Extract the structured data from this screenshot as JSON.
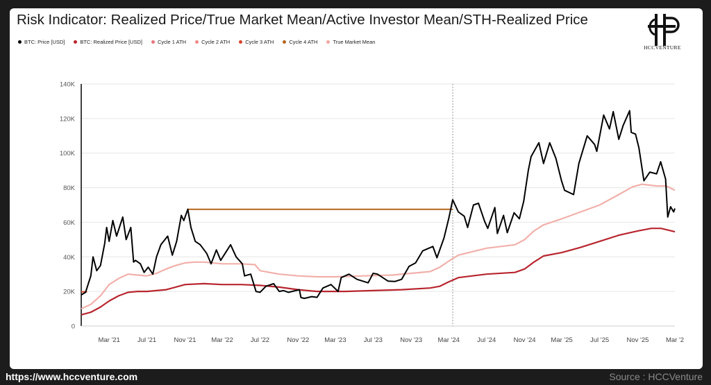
{
  "footer": {
    "url": "https://www.hccventure.com",
    "source": "Source : HCCVenture"
  },
  "logo": {
    "text": "HCCVENTURE"
  },
  "chart_data": {
    "type": "line",
    "title": "Risk Indicator: Realized Price/True Market Mean/Active Investor Mean/STH-Realized Price",
    "ylim": [
      0,
      140000
    ],
    "y_ticks": [
      0,
      20000,
      40000,
      60000,
      80000,
      100000,
      120000,
      140000
    ],
    "y_tick_labels": [
      "0",
      "20K",
      "40K",
      "60K",
      "80K",
      "100K",
      "120K",
      "140K"
    ],
    "x_range": [
      "2020-12-01",
      "2026-03-01"
    ],
    "x_ticks": [
      "2021-03-01",
      "2021-07-01",
      "2021-11-01",
      "2022-03-01",
      "2022-07-01",
      "2022-11-01",
      "2023-03-01",
      "2023-07-01",
      "2023-11-01",
      "2024-03-01",
      "2024-07-01",
      "2024-11-01",
      "2025-03-01",
      "2025-07-01",
      "2025-11-01",
      "2026-03-01"
    ],
    "x_tick_labels": [
      "Mar '21",
      "Jul '21",
      "Nov '21",
      "Mar '22",
      "Jul '22",
      "Nov '22",
      "Mar '23",
      "Jul '23",
      "Nov '23",
      "Mar '24",
      "Jul '24",
      "Nov '24",
      "Mar '25",
      "Jul '25",
      "Nov '25",
      "Mar '2"
    ],
    "grid": true,
    "legend": "top-left",
    "vline_date": "2024-03-14",
    "colors": {
      "btc": "#000000",
      "realized": "#b8252e",
      "cycle1": "#e8757c",
      "cycle2": "#f08a8a",
      "cycle3": "#d6442a",
      "cycle4": "#b5651d",
      "tmm": "#f4a6a0",
      "tmm_line": "#f2b0aa"
    },
    "legend_entries": [
      {
        "name": "BTC: Price [USD]",
        "key": "btc"
      },
      {
        "name": "BTC: Realized Price [USD]",
        "key": "realized"
      },
      {
        "name": "Cycle 1 ATH",
        "key": "cycle1"
      },
      {
        "name": "Cycle 2 ATH",
        "key": "cycle2"
      },
      {
        "name": "Cycle 3 ATH",
        "key": "cycle3"
      },
      {
        "name": "Cycle 4 ATH",
        "key": "cycle4"
      },
      {
        "name": "True Market Mean",
        "key": "tmm"
      }
    ],
    "levels": [
      {
        "name": "Cycle 3 ATH",
        "value": 19800,
        "from": "2020-12-01",
        "to": "2020-12-20",
        "color_key": "cycle3"
      },
      {
        "name": "Cycle 4 ATH",
        "value": 67500,
        "from": "2021-11-10",
        "to": "2024-03-14",
        "color_key": "cycle4"
      }
    ],
    "series": [
      {
        "name": "BTC: Price [USD]",
        "color_key": "btc",
        "x": [
          "2020-12-01",
          "2020-12-15",
          "2021-01-01",
          "2021-01-08",
          "2021-01-20",
          "2021-02-01",
          "2021-02-15",
          "2021-02-21",
          "2021-03-01",
          "2021-03-13",
          "2021-03-25",
          "2021-04-14",
          "2021-04-25",
          "2021-05-10",
          "2021-05-19",
          "2021-05-25",
          "2021-06-10",
          "2021-06-22",
          "2021-07-05",
          "2021-07-20",
          "2021-08-01",
          "2021-08-15",
          "2021-09-06",
          "2021-09-21",
          "2021-10-05",
          "2021-10-20",
          "2021-10-28",
          "2021-11-10",
          "2021-11-20",
          "2021-12-04",
          "2021-12-20",
          "2022-01-10",
          "2022-01-24",
          "2022-02-10",
          "2022-02-24",
          "2022-03-28",
          "2022-04-15",
          "2022-05-05",
          "2022-05-12",
          "2022-06-01",
          "2022-06-18",
          "2022-07-01",
          "2022-07-20",
          "2022-08-14",
          "2022-09-01",
          "2022-09-15",
          "2022-10-01",
          "2022-11-05",
          "2022-11-10",
          "2022-11-21",
          "2022-12-15",
          "2023-01-01",
          "2023-01-20",
          "2023-02-15",
          "2023-03-10",
          "2023-03-20",
          "2023-04-14",
          "2023-05-10",
          "2023-06-15",
          "2023-07-01",
          "2023-07-15",
          "2023-08-18",
          "2023-09-10",
          "2023-10-01",
          "2023-10-25",
          "2023-11-15",
          "2023-12-08",
          "2024-01-10",
          "2024-01-23",
          "2024-02-15",
          "2024-03-01",
          "2024-03-14",
          "2024-04-01",
          "2024-04-20",
          "2024-05-01",
          "2024-05-20",
          "2024-06-05",
          "2024-06-25",
          "2024-07-05",
          "2024-07-28",
          "2024-08-05",
          "2024-08-25",
          "2024-09-06",
          "2024-09-28",
          "2024-10-15",
          "2024-10-29",
          "2024-11-13",
          "2024-11-22",
          "2024-12-17",
          "2025-01-01",
          "2025-01-21",
          "2025-02-10",
          "2025-02-28",
          "2025-03-10",
          "2025-04-08",
          "2025-04-25",
          "2025-05-22",
          "2025-06-15",
          "2025-06-22",
          "2025-07-14",
          "2025-08-02",
          "2025-08-14",
          "2025-09-01",
          "2025-09-15",
          "2025-10-06",
          "2025-10-11",
          "2025-10-25",
          "2025-11-05",
          "2025-11-21",
          "2025-12-10",
          "2026-01-01",
          "2026-01-14",
          "2026-01-30",
          "2026-02-06",
          "2026-02-15",
          "2026-02-25",
          "2026-03-01"
        ],
        "values": [
          18000,
          19500,
          29000,
          40000,
          32000,
          35000,
          48000,
          57000,
          49000,
          61000,
          52000,
          63000,
          50000,
          57000,
          37000,
          38000,
          36000,
          31000,
          34000,
          30000,
          40000,
          47000,
          52000,
          41000,
          49000,
          64000,
          61000,
          67500,
          57000,
          49000,
          47000,
          42000,
          36000,
          44000,
          38000,
          47000,
          40000,
          36000,
          29000,
          30000,
          20000,
          19500,
          23000,
          24500,
          20000,
          20500,
          19500,
          21000,
          16500,
          16000,
          17000,
          16600,
          22000,
          24000,
          20000,
          28000,
          30000,
          27000,
          25000,
          30500,
          30000,
          26000,
          25800,
          27000,
          34500,
          36500,
          43500,
          46000,
          39500,
          51000,
          62000,
          73000,
          66000,
          63500,
          57000,
          70000,
          71000,
          60500,
          56500,
          68500,
          53500,
          64000,
          54000,
          65500,
          62000,
          72000,
          90000,
          98000,
          106000,
          94000,
          106000,
          97000,
          84000,
          78500,
          76000,
          94000,
          110000,
          105000,
          101000,
          122000,
          114000,
          124000,
          108000,
          116000,
          124500,
          112000,
          111000,
          103000,
          84000,
          89000,
          88000,
          95000,
          85000,
          63000,
          69000,
          66000,
          68000
        ]
      },
      {
        "name": "True Market Mean",
        "color_key": "tmm_line",
        "x": [
          "2020-12-01",
          "2021-01-01",
          "2021-02-01",
          "2021-03-01",
          "2021-04-01",
          "2021-05-01",
          "2021-06-01",
          "2021-07-01",
          "2021-08-01",
          "2021-09-01",
          "2021-10-01",
          "2021-11-01",
          "2021-12-01",
          "2022-01-01",
          "2022-03-01",
          "2022-05-01",
          "2022-06-15",
          "2022-07-01",
          "2022-09-01",
          "2022-11-01",
          "2023-01-01",
          "2023-03-01",
          "2023-06-01",
          "2023-09-01",
          "2023-11-01",
          "2024-01-01",
          "2024-02-01",
          "2024-03-01",
          "2024-04-01",
          "2024-07-01",
          "2024-10-01",
          "2024-11-01",
          "2024-12-01",
          "2025-01-01",
          "2025-03-01",
          "2025-05-01",
          "2025-07-01",
          "2025-09-01",
          "2025-10-15",
          "2025-11-15",
          "2026-01-01",
          "2026-02-01",
          "2026-03-01"
        ],
        "values": [
          10000,
          12500,
          17500,
          24000,
          27500,
          30000,
          29500,
          29000,
          30500,
          33000,
          35000,
          36500,
          37000,
          37000,
          36000,
          36000,
          35500,
          32000,
          30000,
          29000,
          28500,
          28500,
          29000,
          29500,
          30500,
          31500,
          34000,
          37500,
          41000,
          45000,
          47000,
          50000,
          55000,
          58500,
          62000,
          66000,
          70000,
          76000,
          80500,
          82000,
          81000,
          81000,
          78500
        ]
      },
      {
        "name": "BTC: Realized Price [USD]",
        "color_key": "realized",
        "x": [
          "2020-12-01",
          "2021-01-01",
          "2021-02-01",
          "2021-03-01",
          "2021-04-01",
          "2021-05-01",
          "2021-06-01",
          "2021-07-01",
          "2021-09-01",
          "2021-11-01",
          "2022-01-01",
          "2022-03-01",
          "2022-05-01",
          "2022-07-01",
          "2022-09-01",
          "2022-11-01",
          "2023-01-01",
          "2023-04-01",
          "2023-07-01",
          "2023-10-01",
          "2024-01-01",
          "2024-02-01",
          "2024-03-01",
          "2024-04-01",
          "2024-07-01",
          "2024-10-01",
          "2024-11-01",
          "2024-12-01",
          "2025-01-01",
          "2025-03-01",
          "2025-05-01",
          "2025-07-01",
          "2025-09-01",
          "2025-11-01",
          "2025-12-15",
          "2026-01-15",
          "2026-03-01"
        ],
        "values": [
          6500,
          8000,
          11000,
          14500,
          17500,
          19500,
          20000,
          20000,
          21000,
          24000,
          24500,
          24000,
          24000,
          23500,
          22500,
          21000,
          20000,
          20000,
          20500,
          21000,
          22000,
          23000,
          25500,
          28000,
          30000,
          31000,
          33000,
          37000,
          40500,
          42500,
          45500,
          49000,
          52500,
          55000,
          56500,
          56500,
          54500
        ]
      }
    ]
  }
}
